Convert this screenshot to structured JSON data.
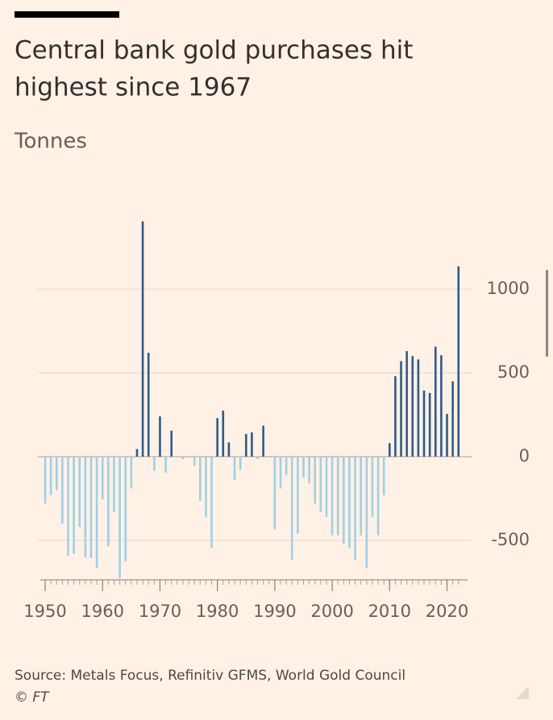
{
  "chart_data": {
    "type": "bar",
    "title_lines": [
      "Central bank gold purchases hit",
      "highest since 1967"
    ],
    "subtitle": "Tonnes",
    "source": "Source: Metals Focus, Refinitiv GFMS, World Gold Council",
    "credit": "© FT",
    "x": [
      1950,
      1951,
      1952,
      1953,
      1954,
      1955,
      1956,
      1957,
      1958,
      1959,
      1960,
      1961,
      1962,
      1963,
      1964,
      1965,
      1966,
      1967,
      1968,
      1969,
      1970,
      1971,
      1972,
      1973,
      1974,
      1975,
      1976,
      1977,
      1978,
      1979,
      1980,
      1981,
      1982,
      1983,
      1984,
      1985,
      1986,
      1987,
      1988,
      1989,
      1990,
      1991,
      1992,
      1993,
      1994,
      1995,
      1996,
      1997,
      1998,
      1999,
      2000,
      2001,
      2002,
      2003,
      2004,
      2005,
      2006,
      2007,
      2008,
      2009,
      2010,
      2011,
      2012,
      2013,
      2014,
      2015,
      2016,
      2017,
      2018,
      2019,
      2020,
      2021,
      2022
    ],
    "values": [
      -280,
      -230,
      -200,
      -400,
      -590,
      -580,
      -420,
      -600,
      -605,
      -665,
      -255,
      -535,
      -330,
      -725,
      -625,
      -190,
      45,
      1404,
      620,
      -85,
      240,
      -95,
      155,
      0,
      -15,
      0,
      -55,
      -265,
      -360,
      -545,
      230,
      275,
      85,
      -140,
      -80,
      135,
      145,
      -15,
      185,
      0,
      -435,
      -190,
      -110,
      -615,
      -460,
      -125,
      -160,
      -280,
      -330,
      -360,
      -470,
      -470,
      -520,
      -545,
      -615,
      -470,
      -665,
      -360,
      -470,
      -230,
      80,
      480,
      570,
      630,
      600,
      580,
      395,
      380,
      656,
      605,
      255,
      450,
      1136
    ],
    "positive_color": "#2e5b8c",
    "negative_color": "#9fd0e6",
    "xlim": [
      1949,
      2024
    ],
    "xticks": [
      1950,
      1960,
      1970,
      1980,
      1990,
      2000,
      2010,
      2020
    ],
    "ylim": [
      -740,
      1420
    ],
    "yticks": [
      -500,
      0,
      500,
      1000
    ],
    "grid": true
  }
}
